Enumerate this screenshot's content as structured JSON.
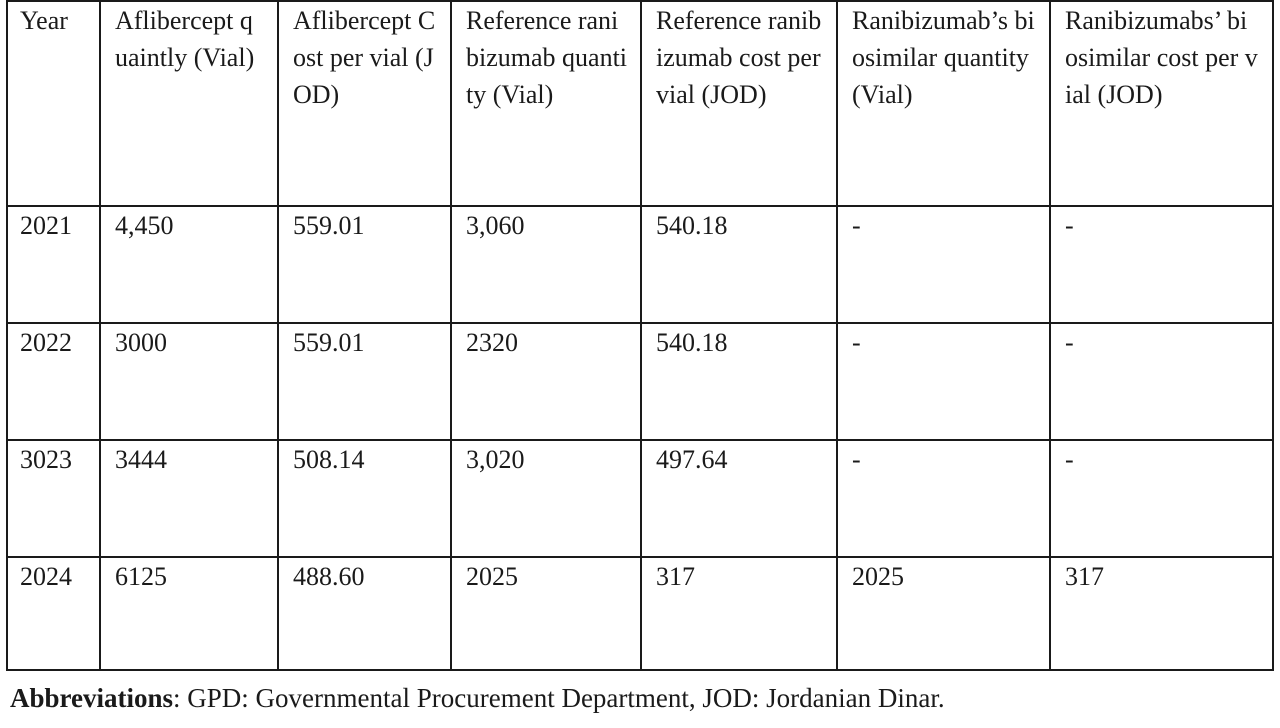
{
  "table": {
    "headers": [
      "Year",
      "Aflibercept quaintly (Vial)",
      "Aflibercept Cost per vial (JOD)",
      "Reference ranibizumab quantity (Vial)",
      "Reference ranibizumab cost per vial (JOD)",
      "Ranibizumab’s biosimilar quantity (Vial)",
      "Ranibizumabs’ biosimilar cost per vial (JOD)"
    ],
    "rows": [
      [
        "2021",
        "4,450",
        "559.01",
        "3,060",
        "540.18",
        "-",
        "-"
      ],
      [
        "2022",
        "3000",
        "559.01",
        "2320",
        "540.18",
        "-",
        "-"
      ],
      [
        "3023",
        "3444",
        "508.14",
        "3,020",
        "497.64",
        "-",
        "-"
      ],
      [
        "2024",
        "6125",
        "488.60",
        "2025",
        "317",
        "2025",
        "317"
      ]
    ]
  },
  "footnote": {
    "label": "Abbreviations",
    "text": ": GPD: Governmental Procurement Department, JOD: Jordanian Dinar."
  }
}
